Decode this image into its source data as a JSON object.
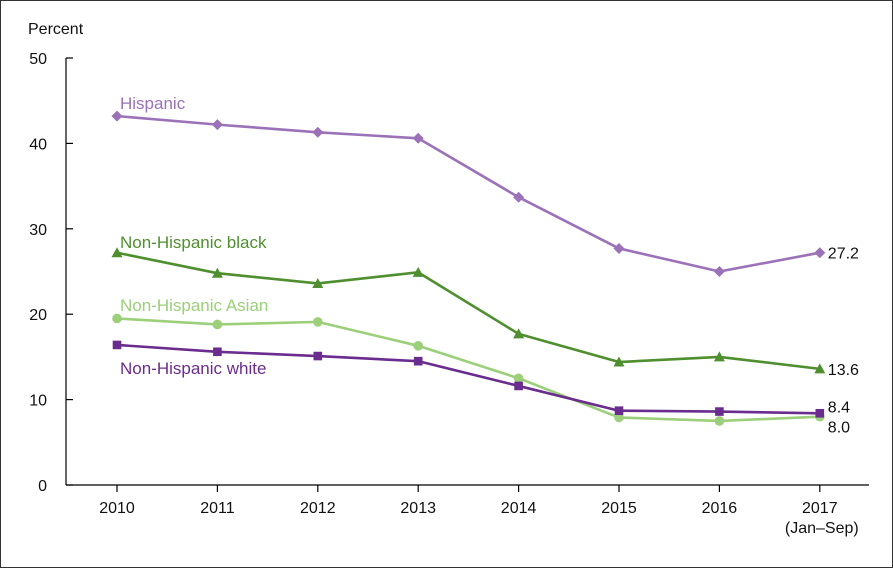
{
  "chart_data": {
    "type": "line",
    "title": "",
    "ylabel": "Percent",
    "xlabel": "",
    "ylim": [
      0,
      50
    ],
    "yticks": [
      0,
      10,
      20,
      30,
      40,
      50
    ],
    "categories": [
      "2010",
      "2011",
      "2012",
      "2013",
      "2014",
      "2015",
      "2016",
      "2017"
    ],
    "category_sublabels": [
      "",
      "",
      "",
      "",
      "",
      "",
      "",
      "(Jan–Sep)"
    ],
    "grid": false,
    "legend": "inline labels",
    "series": [
      {
        "name": "Hispanic",
        "color": "#9b72b8",
        "marker": "diamond",
        "values": [
          43.2,
          42.2,
          41.3,
          40.6,
          33.7,
          27.7,
          25.0,
          27.2
        ],
        "end_label": "27.2"
      },
      {
        "name": "Non-Hispanic black",
        "color": "#4f8f2f",
        "marker": "triangle",
        "values": [
          27.2,
          24.8,
          23.6,
          24.9,
          17.7,
          14.4,
          15.0,
          13.6
        ],
        "end_label": "13.6"
      },
      {
        "name": "Non-Hispanic Asian",
        "color": "#9bcf7a",
        "marker": "circle",
        "values": [
          19.5,
          18.8,
          19.1,
          16.3,
          12.5,
          7.9,
          7.5,
          8.0
        ],
        "end_label": "8.0"
      },
      {
        "name": "Non-Hispanic white",
        "color": "#6a2c8e",
        "marker": "square",
        "values": [
          16.4,
          15.6,
          15.1,
          14.5,
          11.6,
          8.7,
          8.6,
          8.4
        ],
        "end_label": "8.4"
      }
    ]
  }
}
